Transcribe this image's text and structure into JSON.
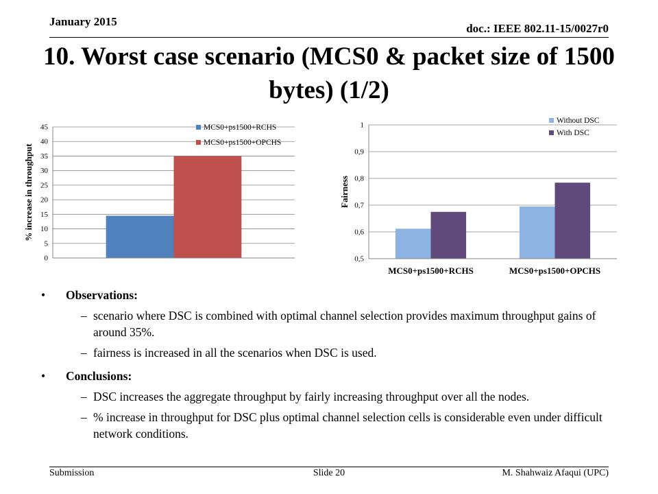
{
  "header": {
    "date": "January 2015",
    "doc": "doc.: IEEE 802.11-15/0027r0"
  },
  "title": "10. Worst case scenario (MCS0 & packet size of 1500 bytes) (1/2)",
  "chart_data": [
    {
      "type": "bar",
      "ylabel": "% increase in throughput",
      "ylim": [
        0,
        45
      ],
      "yticks": [
        "0",
        "5",
        "10",
        "15",
        "20",
        "25",
        "30",
        "35",
        "40",
        "45"
      ],
      "grid": true,
      "legend": "top-right",
      "categories": [
        ""
      ],
      "series": [
        {
          "name": "MCS0+ps1500+RCHS",
          "values": [
            14.5
          ],
          "color": "#4f81bd"
        },
        {
          "name": "MCS0+ps1500+OPCHS",
          "values": [
            35
          ],
          "color": "#c0504d"
        }
      ]
    },
    {
      "type": "bar",
      "ylabel": "Fairness",
      "ylim": [
        0.5,
        1
      ],
      "yticks": [
        "0,5",
        "0,6",
        "0,7",
        "0,8",
        "0,9",
        "1"
      ],
      "grid": true,
      "legend": "top-right",
      "categories": [
        "MCS0+ps1500+RCHS",
        "MCS0+ps1500+OPCHS"
      ],
      "series": [
        {
          "name": "Without DSC",
          "values": [
            0.612,
            0.695
          ],
          "color": "#8db3e2"
        },
        {
          "name": "With DSC",
          "values": [
            0.675,
            0.784
          ],
          "color": "#604a7b"
        }
      ]
    }
  ],
  "observations": {
    "label": "Observations:",
    "items": [
      "scenario where DSC is combined with optimal channel selection provides maximum throughput gains of  around 35%.",
      "fairness is increased in all the scenarios when DSC is used."
    ]
  },
  "conclusions": {
    "label": "Conclusions:",
    "items": [
      "DSC increases the aggregate  throughput by fairly increasing throughput over all the nodes.",
      "% increase in throughput for DSC plus optimal channel selection cells is considerable even under difficult network conditions."
    ]
  },
  "footer": {
    "left": "Submission",
    "center": "Slide 20",
    "right": "M. Shahwaiz Afaqui (UPC)"
  },
  "glyphs": {
    "bullet": "•",
    "dash": "–"
  }
}
